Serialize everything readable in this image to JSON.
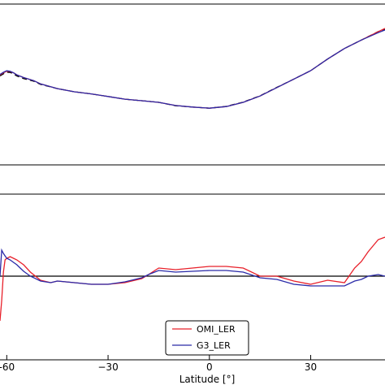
{
  "colors": {
    "omi": "#e8202a",
    "g3": "#2a2aa8",
    "reference": "#000000"
  },
  "chart_data": [
    {
      "type": "line",
      "panel": "top",
      "xlim": [
        -62,
        52
      ],
      "ylim": [
        0,
        1
      ],
      "grid": false,
      "series": [
        {
          "color": "#e8202a",
          "style": "solid",
          "x": [
            -62,
            -61,
            -60,
            -59,
            -58,
            -57,
            -55,
            -52,
            -50,
            -45,
            -40,
            -35,
            -30,
            -25,
            -20,
            -15,
            -10,
            -5,
            0,
            5,
            10,
            15,
            20,
            25,
            30,
            35,
            40,
            45,
            50,
            52
          ],
          "y": [
            0.56,
            0.58,
            0.595,
            0.592,
            0.58,
            0.56,
            0.535,
            0.505,
            0.475,
            0.43,
            0.4,
            0.38,
            0.355,
            0.33,
            0.315,
            0.3,
            0.27,
            0.255,
            0.245,
            0.26,
            0.3,
            0.36,
            0.44,
            0.52,
            0.6,
            0.71,
            0.81,
            0.89,
            0.97,
            1.0
          ]
        },
        {
          "color": "#2a2aa8",
          "style": "solid",
          "x": [
            -62,
            -61,
            -60,
            -59,
            -58,
            -57,
            -55,
            -52,
            -50,
            -45,
            -40,
            -35,
            -30,
            -25,
            -20,
            -15,
            -10,
            -5,
            0,
            5,
            10,
            15,
            20,
            25,
            30,
            35,
            40,
            45,
            50,
            52
          ],
          "y": [
            0.565,
            0.585,
            0.6,
            0.595,
            0.58,
            0.56,
            0.535,
            0.505,
            0.475,
            0.43,
            0.4,
            0.38,
            0.355,
            0.33,
            0.315,
            0.3,
            0.27,
            0.255,
            0.245,
            0.26,
            0.3,
            0.36,
            0.44,
            0.52,
            0.6,
            0.71,
            0.81,
            0.89,
            0.96,
            0.985
          ]
        },
        {
          "color": "#000000",
          "style": "dashed",
          "x": [
            -62,
            -61,
            -60,
            -59,
            -58,
            -57,
            -55,
            -52,
            -50,
            -45,
            -40,
            -35,
            -30,
            -25,
            -20,
            -15,
            -10,
            -5,
            0,
            5,
            10,
            15,
            20,
            25,
            30,
            35,
            40,
            45,
            50,
            52
          ],
          "y": [
            0.55,
            0.57,
            0.585,
            0.583,
            0.57,
            0.55,
            0.525,
            0.5,
            0.47,
            0.43,
            0.4,
            0.38,
            0.355,
            0.33,
            0.315,
            0.3,
            0.268,
            0.255,
            0.245,
            0.262,
            0.302,
            0.362,
            0.442,
            0.52,
            0.6,
            0.71,
            0.81,
            0.89,
            0.97,
            0.99
          ]
        }
      ]
    },
    {
      "type": "line",
      "panel": "bottom",
      "xlim": [
        -62,
        52
      ],
      "ylim": [
        -1,
        1
      ],
      "xticks": [
        -60,
        -30,
        0,
        30
      ],
      "xtick_labels": [
        "-60",
        "−30",
        "0",
        "30"
      ],
      "xlabel": "Latitude [°]",
      "legend": "lower-right",
      "reference_line": 0,
      "series": [
        {
          "name": "OMI_LER",
          "color": "#e8202a",
          "x": [
            -62,
            -61.5,
            -61,
            -60.5,
            -60,
            -59,
            -58,
            -57,
            -56,
            -55,
            -53,
            -50,
            -47,
            -45,
            -40,
            -35,
            -30,
            -25,
            -20,
            -18,
            -15,
            -10,
            -5,
            0,
            5,
            10,
            15,
            20,
            25,
            30,
            35,
            40,
            43,
            45,
            47,
            50,
            52
          ],
          "y": [
            -0.55,
            -0.3,
            0.05,
            0.2,
            0.22,
            0.24,
            0.22,
            0.2,
            0.17,
            0.14,
            0.05,
            -0.05,
            -0.08,
            -0.06,
            -0.08,
            -0.1,
            -0.1,
            -0.08,
            -0.03,
            0.02,
            0.1,
            0.08,
            0.1,
            0.12,
            0.12,
            0.1,
            0.0,
            0.0,
            -0.06,
            -0.1,
            -0.05,
            -0.08,
            0.1,
            0.18,
            0.3,
            0.45,
            0.48
          ]
        },
        {
          "name": "G3_LER",
          "color": "#2a2aa8",
          "x": [
            -62,
            -61.5,
            -61,
            -60.5,
            -60,
            -59,
            -58,
            -57,
            -56,
            -55,
            -53,
            -50,
            -47,
            -45,
            -40,
            -35,
            -30,
            -25,
            -20,
            -18,
            -15,
            -10,
            -5,
            0,
            5,
            10,
            15,
            20,
            25,
            30,
            35,
            40,
            43,
            45,
            47,
            50,
            52
          ],
          "y": [
            0.0,
            0.32,
            0.28,
            0.25,
            0.22,
            0.2,
            0.17,
            0.14,
            0.1,
            0.06,
            0.0,
            -0.06,
            -0.08,
            -0.06,
            -0.08,
            -0.1,
            -0.1,
            -0.07,
            -0.02,
            0.02,
            0.07,
            0.05,
            0.06,
            0.07,
            0.07,
            0.05,
            -0.02,
            -0.04,
            -0.1,
            -0.12,
            -0.12,
            -0.12,
            -0.06,
            -0.04,
            0.0,
            0.02,
            0.0
          ]
        }
      ]
    }
  ]
}
